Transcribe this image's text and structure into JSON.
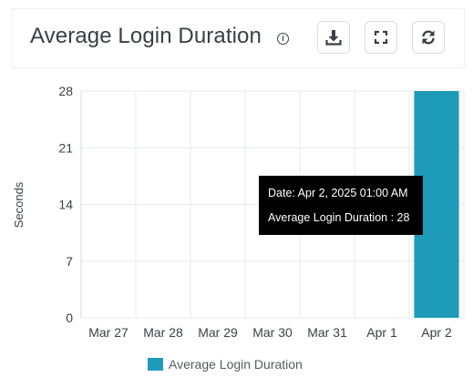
{
  "header": {
    "title": "Average Login Duration",
    "info_icon": "info-icon",
    "buttons": [
      {
        "name": "download-button",
        "icon": "download-icon"
      },
      {
        "name": "fullscreen-button",
        "icon": "expand-icon"
      },
      {
        "name": "refresh-button",
        "icon": "refresh-icon"
      }
    ]
  },
  "colors": {
    "bar": "#1f9bba",
    "grid": "#e7eaee",
    "text": "#3a3f45"
  },
  "tooltip": {
    "date_line": "Date: Apr 2, 2025 01:00 AM",
    "value_line": "Average Login Duration : 28"
  },
  "chart_data": {
    "type": "bar",
    "categories": [
      "Mar 27",
      "Mar 28",
      "Mar 29",
      "Mar 30",
      "Mar 31",
      "Apr 1",
      "Apr 2"
    ],
    "series": [
      {
        "name": "Average Login Duration",
        "values": [
          0,
          0,
          0,
          0,
          0,
          0,
          28
        ]
      }
    ],
    "ylabel": "Seconds",
    "xlabel": "",
    "ylim": [
      0,
      28
    ],
    "yticks": [
      0,
      7,
      14,
      21,
      28
    ],
    "grid": true,
    "legend": "bottom-center"
  }
}
